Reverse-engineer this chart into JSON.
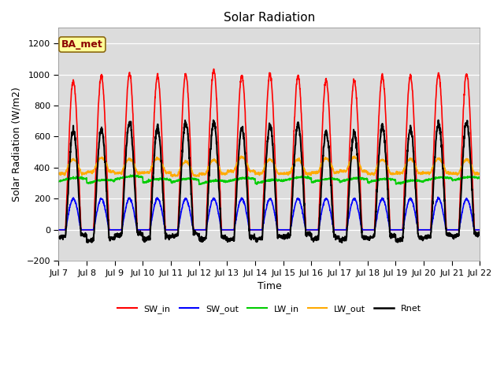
{
  "title": "Solar Radiation",
  "ylabel": "Solar Radiation (W/m2)",
  "xlabel": "Time",
  "annotation": "BA_met",
  "ylim": [
    -200,
    1300
  ],
  "yticks": [
    -200,
    0,
    200,
    400,
    600,
    800,
    1000,
    1200
  ],
  "xlim_days": [
    7,
    22
  ],
  "xtick_positions": [
    7,
    8,
    9,
    10,
    11,
    12,
    13,
    14,
    15,
    16,
    17,
    18,
    19,
    20,
    21,
    22
  ],
  "xtick_labels": [
    "Jul 7",
    "Jul 8",
    "Jul 9",
    "Jul 10",
    "Jul 11",
    "Jul 12",
    "Jul 13",
    "Jul 14",
    "Jul 15",
    "Jul 16",
    "Jul 17",
    "Jul 18",
    "Jul 19",
    "Jul 20",
    "Jul 21",
    "Jul 22"
  ],
  "series": {
    "SW_in": {
      "color": "#ff0000",
      "lw": 1.2
    },
    "SW_out": {
      "color": "#0000ff",
      "lw": 1.2
    },
    "LW_in": {
      "color": "#00cc00",
      "lw": 1.2
    },
    "LW_out": {
      "color": "#ffaa00",
      "lw": 1.2
    },
    "Rnet": {
      "color": "#000000",
      "lw": 1.5
    }
  },
  "fig_bg": "#ffffff",
  "plot_bg": "#dcdcdc",
  "title_fontsize": 11,
  "label_fontsize": 9,
  "tick_fontsize": 8,
  "annotation_fontsize": 9,
  "annotation_bg": "#ffff99",
  "annotation_border": "#8b6914"
}
